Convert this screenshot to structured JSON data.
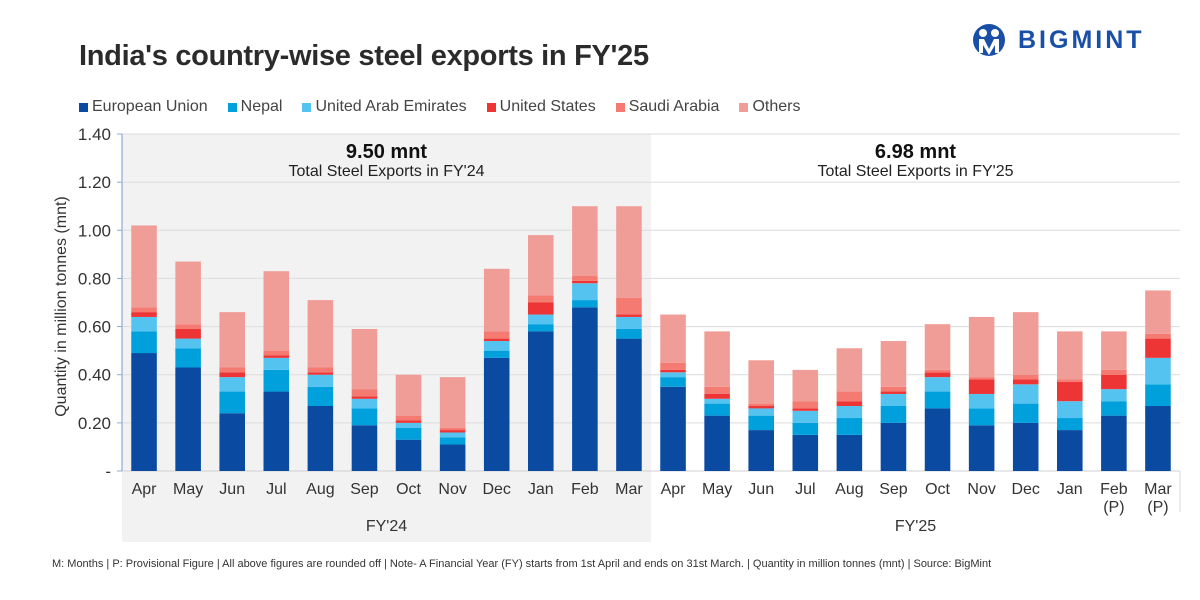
{
  "header": {
    "title": "India's country-wise steel exports in FY'25",
    "brand": "BIGMINT",
    "brand_icon": "bigmint-logo-icon"
  },
  "footnote": "M: Months | P: Provisional Figure |  All above figures are rounded off | Note- A Financial Year (FY) starts from 1st April and ends on 31st March. | Quantity in million tonnes (mnt) | Source: BigMint",
  "chart_data": {
    "type": "bar",
    "stacked": true,
    "title": "India's country-wise steel exports in FY'25",
    "xlabel": "",
    "ylabel": "Quantity in million tonnes (mnt)",
    "ylim": [
      0,
      1.4
    ],
    "yticks": [
      0,
      0.2,
      0.4,
      0.6,
      0.8,
      1.0,
      1.2,
      1.4
    ],
    "ytick_labels": [
      "-",
      "0.20",
      "0.40",
      "0.60",
      "0.80",
      "1.00",
      "1.20",
      "1.40"
    ],
    "grid": true,
    "legend_position": "top",
    "categories": [
      "Apr",
      "May",
      "Jun",
      "Jul",
      "Aug",
      "Sep",
      "Oct",
      "Nov",
      "Dec",
      "Jan",
      "Feb",
      "Mar",
      "Apr",
      "May",
      "Jun",
      "Jul",
      "Aug",
      "Sep",
      "Oct",
      "Nov",
      "Dec",
      "Jan",
      "Feb (P)",
      "Mar (P)"
    ],
    "category_lines": [
      [
        "Apr"
      ],
      [
        "May"
      ],
      [
        "Jun"
      ],
      [
        "Jul"
      ],
      [
        "Aug"
      ],
      [
        "Sep"
      ],
      [
        "Oct"
      ],
      [
        "Nov"
      ],
      [
        "Dec"
      ],
      [
        "Jan"
      ],
      [
        "Feb"
      ],
      [
        "Mar"
      ],
      [
        "Apr"
      ],
      [
        "May"
      ],
      [
        "Jun"
      ],
      [
        "Jul"
      ],
      [
        "Aug"
      ],
      [
        "Sep"
      ],
      [
        "Oct"
      ],
      [
        "Nov"
      ],
      [
        "Dec"
      ],
      [
        "Jan"
      ],
      [
        "Feb",
        "(P)"
      ],
      [
        "Mar",
        "(P)"
      ]
    ],
    "groups": [
      {
        "label": "FY'24",
        "start": 0,
        "end": 11,
        "total_value": "9.50 mnt",
        "total_label": "Total Steel Exports in FY'24",
        "shaded": true
      },
      {
        "label": "FY'25",
        "start": 12,
        "end": 23,
        "total_value": "6.98 mnt",
        "total_label": "Total Steel Exports in FY'25",
        "shaded": false
      }
    ],
    "series": [
      {
        "name": "European Union",
        "color": "#0a4aa0",
        "values": [
          0.49,
          0.43,
          0.24,
          0.33,
          0.27,
          0.19,
          0.13,
          0.11,
          0.47,
          0.58,
          0.68,
          0.55,
          0.35,
          0.23,
          0.17,
          0.15,
          0.15,
          0.2,
          0.26,
          0.19,
          0.2,
          0.17,
          0.23,
          0.27
        ]
      },
      {
        "name": "Nepal",
        "color": "#00a0dc",
        "values": [
          0.09,
          0.08,
          0.09,
          0.09,
          0.08,
          0.07,
          0.05,
          0.03,
          0.03,
          0.03,
          0.03,
          0.04,
          0.04,
          0.05,
          0.06,
          0.05,
          0.07,
          0.07,
          0.07,
          0.07,
          0.08,
          0.05,
          0.06,
          0.09
        ]
      },
      {
        "name": "United Arab Emirates",
        "color": "#55c3f0",
        "values": [
          0.06,
          0.04,
          0.06,
          0.05,
          0.05,
          0.04,
          0.02,
          0.02,
          0.04,
          0.04,
          0.07,
          0.05,
          0.02,
          0.02,
          0.03,
          0.05,
          0.05,
          0.05,
          0.06,
          0.06,
          0.08,
          0.07,
          0.05,
          0.11
        ]
      },
      {
        "name": "United States",
        "color": "#ee3535",
        "values": [
          0.02,
          0.04,
          0.02,
          0.01,
          0.01,
          0.01,
          0.01,
          0.01,
          0.01,
          0.05,
          0.01,
          0.01,
          0.01,
          0.02,
          0.01,
          0.01,
          0.02,
          0.01,
          0.02,
          0.06,
          0.02,
          0.08,
          0.06,
          0.08
        ]
      },
      {
        "name": "Saudi Arabia",
        "color": "#f47a72",
        "values": [
          0.02,
          0.02,
          0.02,
          0.02,
          0.02,
          0.03,
          0.02,
          0.01,
          0.03,
          0.03,
          0.02,
          0.07,
          0.03,
          0.03,
          0.01,
          0.03,
          0.04,
          0.02,
          0.01,
          0.01,
          0.02,
          0.01,
          0.02,
          0.02
        ]
      },
      {
        "name": "Others",
        "color": "#f09d98",
        "values": [
          0.34,
          0.26,
          0.23,
          0.33,
          0.28,
          0.25,
          0.17,
          0.21,
          0.26,
          0.25,
          0.29,
          0.38,
          0.2,
          0.23,
          0.18,
          0.13,
          0.18,
          0.19,
          0.19,
          0.25,
          0.26,
          0.2,
          0.16,
          0.18
        ]
      }
    ]
  }
}
